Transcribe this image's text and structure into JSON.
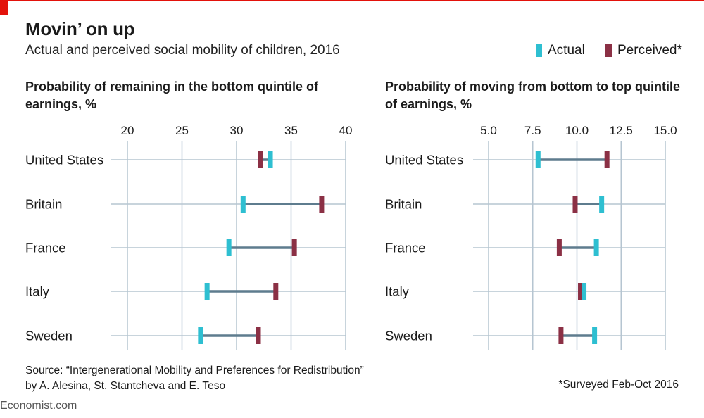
{
  "header": {
    "title": "Movin’ on up",
    "subtitle": "Actual and perceived social mobility of children, 2016"
  },
  "legend": [
    {
      "label": "Actual",
      "color": "#2ebfd1"
    },
    {
      "label": "Perceived*",
      "color": "#8b3045"
    }
  ],
  "colors": {
    "actual": "#2ebfd1",
    "perceived": "#8b3045",
    "connector": "#5e7c8e",
    "grid": "#b6c5d1"
  },
  "chart_data": [
    {
      "type": "dumbbell",
      "title": "Probability of remaining in the bottom quintile of earnings, %",
      "categories": [
        "United States",
        "Britain",
        "France",
        "Italy",
        "Sweden"
      ],
      "xlim": [
        20,
        40
      ],
      "xticks": [
        "20",
        "25",
        "30",
        "35",
        "40"
      ],
      "tick_values": [
        20,
        25,
        30,
        35,
        40
      ],
      "series": [
        {
          "name": "Actual",
          "values": [
            33.1,
            30.6,
            29.3,
            27.3,
            26.7
          ]
        },
        {
          "name": "Perceived*",
          "values": [
            32.2,
            37.8,
            35.3,
            33.6,
            32.0
          ]
        }
      ]
    },
    {
      "type": "dumbbell",
      "title": "Probability of moving from bottom to top quintile of earnings, %",
      "categories": [
        "United States",
        "Britain",
        "France",
        "Italy",
        "Sweden"
      ],
      "xlim": [
        5,
        15
      ],
      "xticks": [
        "5.0",
        "7.5",
        "10.0",
        "12.5",
        "15.0"
      ],
      "tick_values": [
        5,
        7.5,
        10,
        12.5,
        15
      ],
      "series": [
        {
          "name": "Actual",
          "values": [
            7.8,
            11.4,
            11.1,
            10.4,
            11.0
          ]
        },
        {
          "name": "Perceived*",
          "values": [
            11.7,
            9.9,
            9.0,
            10.2,
            9.1
          ]
        }
      ]
    }
  ],
  "footer": {
    "source_line1": "Source: “Intergenerational Mobility and Preferences for Redistribution”",
    "source_line2": "by A. Alesina, St. Stantcheva and E. Teso",
    "note": "*Surveyed Feb-Oct 2016",
    "brand": "Economist.com"
  }
}
